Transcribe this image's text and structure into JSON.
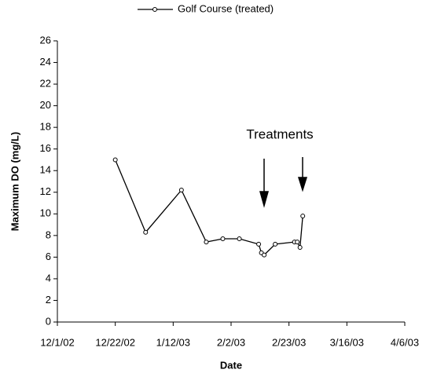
{
  "chart_data": {
    "type": "line",
    "xlabel": "Date",
    "ylabel": "Maximum DO (mg/L)",
    "annotation": "Treatments",
    "x": [
      "12/22/02",
      "1/2/03",
      "1/15/03",
      "1/24/03",
      "1/30/03",
      "2/5/03",
      "2/12/03",
      "2/13/03",
      "2/14/03",
      "2/18/03",
      "2/25/03",
      "2/26/03",
      "2/27/03",
      "2/28/03"
    ],
    "series": [
      {
        "name": "Golf Course (treated)",
        "color": "#000000",
        "values": [
          15.0,
          8.3,
          12.2,
          7.4,
          7.7,
          7.7,
          7.2,
          6.4,
          6.2,
          7.2,
          7.4,
          7.4,
          6.9,
          9.8
        ]
      }
    ],
    "xlim": [
      "12/1/02",
      "4/6/03"
    ],
    "xticks": [
      "12/1/02",
      "12/22/02",
      "1/12/03",
      "2/2/03",
      "2/23/03",
      "3/16/03",
      "4/6/03"
    ],
    "ylim": [
      0,
      26
    ],
    "yticks": [
      0,
      2,
      4,
      6,
      8,
      10,
      12,
      14,
      16,
      18,
      20,
      22,
      24,
      26
    ],
    "grid": false,
    "legend": "top"
  }
}
